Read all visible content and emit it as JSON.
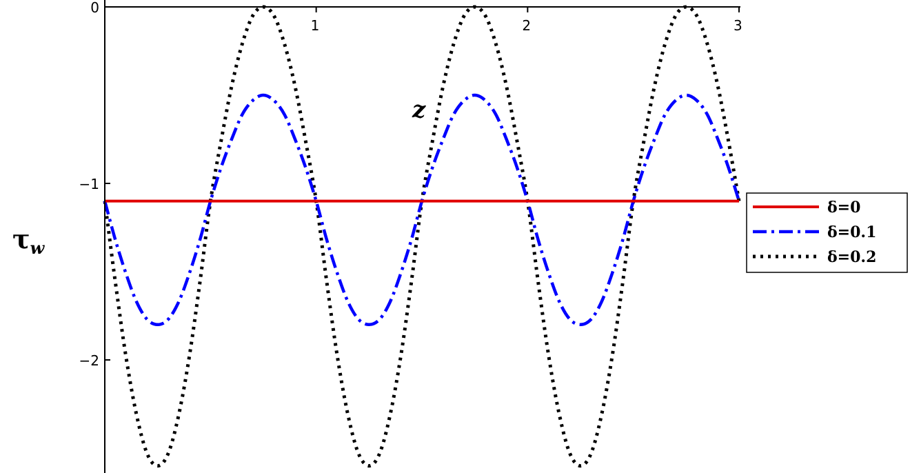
{
  "chart_data": {
    "type": "line",
    "title": "",
    "xlabel": "z",
    "ylabel": "τ",
    "ylabel_sub": "w",
    "xlim": [
      0,
      3
    ],
    "ylim": [
      -2.64,
      0
    ],
    "grid": false,
    "legend_placement": "right",
    "x_ticks": [
      {
        "v": 1,
        "label": "1"
      },
      {
        "v": 2,
        "label": "2"
      },
      {
        "v": 3,
        "label": "3"
      }
    ],
    "y_ticks": [
      {
        "v": 0,
        "label": "0"
      },
      {
        "v": -1,
        "label": "−1"
      },
      {
        "v": -2,
        "label": "−2"
      }
    ],
    "x": [
      0,
      0.05,
      0.1,
      0.15,
      0.2,
      0.25,
      0.3,
      0.35,
      0.4,
      0.45,
      0.5,
      0.55,
      0.6,
      0.65,
      0.7,
      0.75,
      0.8,
      0.85,
      0.9,
      0.95,
      1,
      1.05,
      1.1,
      1.15,
      1.2,
      1.25,
      1.3,
      1.35,
      1.4,
      1.45,
      1.5,
      1.55,
      1.6,
      1.65,
      1.7,
      1.75,
      1.8,
      1.85,
      1.9,
      1.95,
      2,
      2.05,
      2.1,
      2.15,
      2.2,
      2.25,
      2.3,
      2.35,
      2.4,
      2.45,
      2.5,
      2.55,
      2.6,
      2.65,
      2.7,
      2.75,
      2.8,
      2.85,
      2.9,
      2.95,
      3
    ],
    "series": [
      {
        "name": "δ=0",
        "color": "#e00000",
        "style": "solid",
        "values": [
          -1.1,
          -1.1,
          -1.1,
          -1.1,
          -1.1,
          -1.1,
          -1.1,
          -1.1,
          -1.1,
          -1.1,
          -1.1,
          -1.1,
          -1.1,
          -1.1,
          -1.1,
          -1.1,
          -1.1,
          -1.1,
          -1.1,
          -1.1,
          -1.1,
          -1.1,
          -1.1,
          -1.1,
          -1.1,
          -1.1,
          -1.1,
          -1.1,
          -1.1,
          -1.1,
          -1.1,
          -1.1,
          -1.1,
          -1.1,
          -1.1,
          -1.1,
          -1.1,
          -1.1,
          -1.1,
          -1.1,
          -1.1,
          -1.1,
          -1.1,
          -1.1,
          -1.1,
          -1.1,
          -1.1,
          -1.1,
          -1.1,
          -1.1,
          -1.1,
          -1.1,
          -1.1,
          -1.1,
          -1.1,
          -1.1,
          -1.1,
          -1.1,
          -1.1,
          -1.1,
          -1.1
        ]
      },
      {
        "name": "δ=0.1",
        "color": "#0000ff",
        "style": "dashdot",
        "values": [
          -1.1,
          -1.32,
          -1.51,
          -1.67,
          -1.77,
          -1.8,
          -1.77,
          -1.67,
          -1.51,
          -1.32,
          -1.1,
          -0.91,
          -0.75,
          -0.61,
          -0.53,
          -0.5,
          -0.53,
          -0.61,
          -0.75,
          -0.91,
          -1.1,
          -1.32,
          -1.51,
          -1.67,
          -1.77,
          -1.8,
          -1.77,
          -1.67,
          -1.51,
          -1.32,
          -1.1,
          -0.91,
          -0.75,
          -0.61,
          -0.53,
          -0.5,
          -0.53,
          -0.61,
          -0.75,
          -0.91,
          -1.1,
          -1.32,
          -1.51,
          -1.67,
          -1.77,
          -1.8,
          -1.77,
          -1.67,
          -1.51,
          -1.32,
          -1.1,
          -0.91,
          -0.75,
          -0.61,
          -0.53,
          -0.5,
          -0.53,
          -0.61,
          -0.75,
          -0.91,
          -1.1
        ]
      },
      {
        "name": "δ=0.2",
        "color": "#000000",
        "style": "dotted",
        "values": [
          -1.1,
          -1.56,
          -1.98,
          -2.31,
          -2.53,
          -2.6,
          -2.53,
          -2.31,
          -1.98,
          -1.56,
          -1.1,
          -0.76,
          -0.45,
          -0.21,
          -0.05,
          0,
          -0.05,
          -0.21,
          -0.45,
          -0.76,
          -1.1,
          -1.56,
          -1.98,
          -2.31,
          -2.53,
          -2.6,
          -2.53,
          -2.31,
          -1.98,
          -1.56,
          -1.1,
          -0.76,
          -0.45,
          -0.21,
          -0.05,
          0,
          -0.05,
          -0.21,
          -0.45,
          -0.76,
          -1.1,
          -1.56,
          -1.98,
          -2.31,
          -2.53,
          -2.6,
          -2.53,
          -2.31,
          -1.98,
          -1.56,
          -1.1,
          -0.76,
          -0.45,
          -0.21,
          -0.05,
          0,
          -0.05,
          -0.21,
          -0.45,
          -0.76,
          -1.1
        ]
      }
    ]
  }
}
